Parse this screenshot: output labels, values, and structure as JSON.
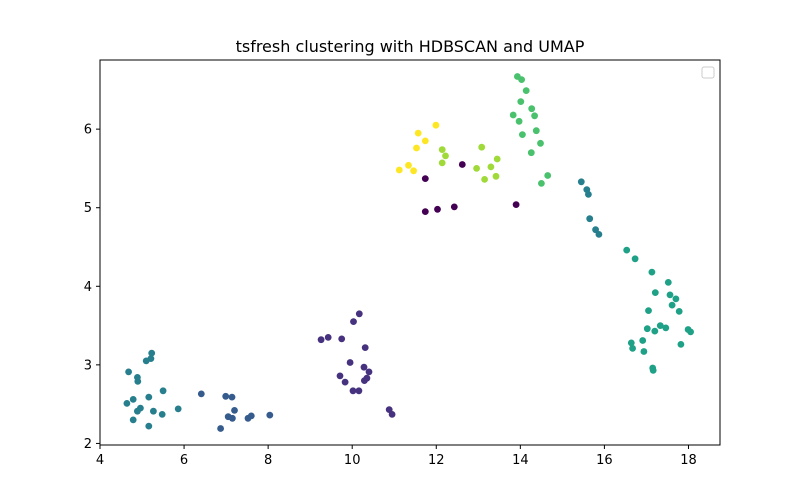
{
  "chart_data": {
    "type": "scatter",
    "title": "tsfresh clustering with HDBSCAN and UMAP",
    "xlabel": "",
    "ylabel": "",
    "xlim": [
      4.0,
      18.75
    ],
    "ylim": [
      1.98,
      6.88
    ],
    "xticks": [
      4,
      6,
      8,
      10,
      12,
      14,
      16,
      18
    ],
    "yticks": [
      2,
      3,
      4,
      5,
      6
    ],
    "grid": false,
    "legend": {
      "placement": "top-right",
      "entries": []
    },
    "series": [
      {
        "color": "#440154",
        "points": [
          [
            11.74,
            5.37
          ],
          [
            12.62,
            5.55
          ],
          [
            11.74,
            4.95
          ],
          [
            12.03,
            4.98
          ],
          [
            12.43,
            5.01
          ],
          [
            13.9,
            5.04
          ]
        ]
      },
      {
        "color": "#46327e",
        "points": [
          [
            9.26,
            3.32
          ],
          [
            9.43,
            3.35
          ],
          [
            9.75,
            3.33
          ],
          [
            10.03,
            3.55
          ],
          [
            10.17,
            3.65
          ],
          [
            10.31,
            3.22
          ],
          [
            9.71,
            2.86
          ],
          [
            9.83,
            2.78
          ],
          [
            9.95,
            3.03
          ],
          [
            10.28,
            2.97
          ],
          [
            10.4,
            2.91
          ],
          [
            10.29,
            2.8
          ],
          [
            10.35,
            2.83
          ],
          [
            10.02,
            2.67
          ],
          [
            10.16,
            2.67
          ],
          [
            10.88,
            2.43
          ],
          [
            10.95,
            2.37
          ]
        ]
      },
      {
        "color": "#365c8d",
        "points": [
          [
            6.41,
            2.63
          ],
          [
            6.99,
            2.6
          ],
          [
            7.14,
            2.59
          ],
          [
            7.05,
            2.34
          ],
          [
            7.15,
            2.32
          ],
          [
            7.2,
            2.42
          ],
          [
            7.52,
            2.32
          ],
          [
            7.6,
            2.35
          ],
          [
            8.04,
            2.36
          ],
          [
            6.87,
            2.19
          ]
        ]
      },
      {
        "color": "#277f8e",
        "points": [
          [
            5.23,
            3.15
          ],
          [
            5.1,
            3.05
          ],
          [
            5.21,
            3.08
          ],
          [
            4.68,
            2.91
          ],
          [
            4.89,
            2.84
          ],
          [
            4.9,
            2.79
          ],
          [
            5.5,
            2.67
          ],
          [
            5.16,
            2.59
          ],
          [
            4.79,
            2.56
          ],
          [
            4.64,
            2.51
          ],
          [
            4.96,
            2.45
          ],
          [
            4.89,
            2.41
          ],
          [
            5.27,
            2.41
          ],
          [
            5.48,
            2.37
          ],
          [
            5.86,
            2.44
          ],
          [
            4.79,
            2.3
          ],
          [
            5.16,
            2.22
          ],
          [
            15.45,
            5.33
          ],
          [
            15.58,
            5.23
          ],
          [
            15.62,
            5.17
          ],
          [
            15.65,
            4.86
          ],
          [
            15.79,
            4.72
          ],
          [
            15.87,
            4.66
          ]
        ]
      },
      {
        "color": "#1fa187",
        "points": [
          [
            16.53,
            4.46
          ],
          [
            16.73,
            4.35
          ],
          [
            17.13,
            4.18
          ],
          [
            17.52,
            4.05
          ],
          [
            17.21,
            3.92
          ],
          [
            17.56,
            3.89
          ],
          [
            17.7,
            3.84
          ],
          [
            17.61,
            3.76
          ],
          [
            17.78,
            3.68
          ],
          [
            17.05,
            3.69
          ],
          [
            17.33,
            3.5
          ],
          [
            17.46,
            3.47
          ],
          [
            17.02,
            3.46
          ],
          [
            17.2,
            3.43
          ],
          [
            17.99,
            3.45
          ],
          [
            18.05,
            3.42
          ],
          [
            16.91,
            3.31
          ],
          [
            16.64,
            3.28
          ],
          [
            16.67,
            3.21
          ],
          [
            16.94,
            3.17
          ],
          [
            17.82,
            3.26
          ],
          [
            17.15,
            2.96
          ],
          [
            17.16,
            2.93
          ]
        ]
      },
      {
        "color": "#4ac16d",
        "points": [
          [
            13.93,
            6.67
          ],
          [
            14.03,
            6.63
          ],
          [
            14.14,
            6.49
          ],
          [
            14.01,
            6.35
          ],
          [
            14.27,
            6.26
          ],
          [
            13.83,
            6.18
          ],
          [
            14.34,
            6.17
          ],
          [
            13.97,
            6.1
          ],
          [
            14.38,
            5.98
          ],
          [
            14.05,
            5.93
          ],
          [
            14.48,
            5.82
          ],
          [
            14.26,
            5.7
          ],
          [
            14.5,
            5.31
          ],
          [
            14.65,
            5.41
          ]
        ]
      },
      {
        "color": "#a0da39",
        "points": [
          [
            13.08,
            5.77
          ],
          [
            12.14,
            5.74
          ],
          [
            12.22,
            5.66
          ],
          [
            12.14,
            5.57
          ],
          [
            13.45,
            5.62
          ],
          [
            12.96,
            5.5
          ],
          [
            13.3,
            5.52
          ],
          [
            13.15,
            5.36
          ],
          [
            13.42,
            5.4
          ]
        ]
      },
      {
        "color": "#fde725",
        "points": [
          [
            11.99,
            6.05
          ],
          [
            11.57,
            5.95
          ],
          [
            11.74,
            5.85
          ],
          [
            11.53,
            5.76
          ],
          [
            11.34,
            5.54
          ],
          [
            11.12,
            5.48
          ],
          [
            11.46,
            5.47
          ]
        ]
      }
    ]
  }
}
